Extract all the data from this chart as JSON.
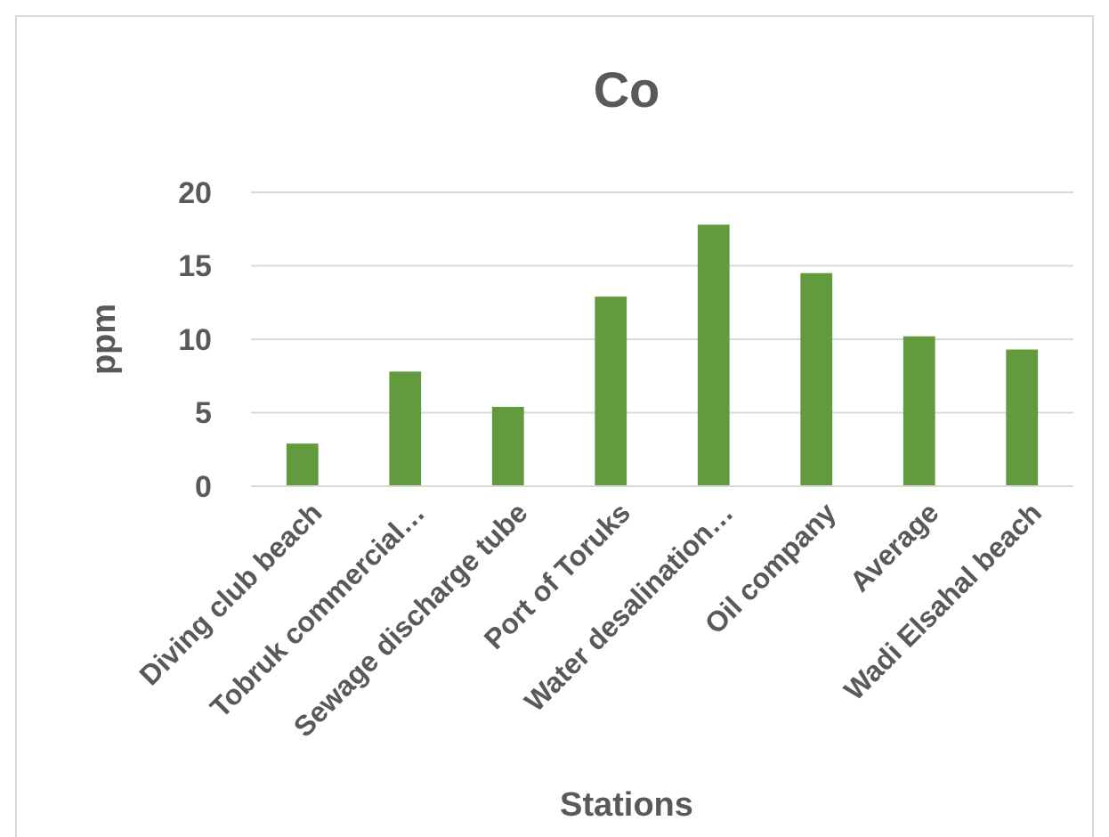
{
  "chart_data": {
    "type": "bar",
    "title": "Co",
    "xlabel": "Stations",
    "ylabel": "ppm",
    "categories": [
      "Diving club beach",
      "Tobruk commercial…",
      "Sewage discharge tube",
      "Port of Toruks",
      "Water desalination…",
      "Oil company",
      "Average",
      "Wadi Elsahal beach"
    ],
    "values": [
      2.9,
      7.8,
      5.4,
      12.9,
      17.8,
      14.5,
      10.2,
      9.3
    ],
    "color": "#629a3e",
    "ylim": [
      0,
      20
    ],
    "yticks": [
      0,
      5,
      10,
      15,
      20
    ],
    "grid": "y"
  }
}
